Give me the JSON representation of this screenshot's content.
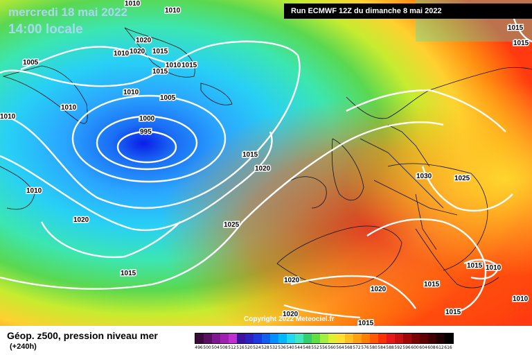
{
  "header": {
    "date_line": "mercredi 18 mai 2022",
    "time_line": "14:00 locale",
    "run_info": "Run ECMWF 12Z du dimanche 8 mai 2022"
  },
  "footer": {
    "field_title": "Géop. z500, pression niveau mer",
    "forecast_hour": "(+240h)",
    "copyright": "Copyright 2022 Meteociel.fr"
  },
  "legend": {
    "ticks": [
      "496",
      "500",
      "504",
      "508",
      "512",
      "516",
      "520",
      "524",
      "528",
      "532",
      "536",
      "540",
      "544",
      "548",
      "552",
      "556",
      "560",
      "564",
      "568",
      "572",
      "576",
      "580",
      "584",
      "588",
      "592",
      "596",
      "600",
      "604",
      "608",
      "612",
      "616"
    ],
    "colors": [
      "#3a0a3a",
      "#5a1060",
      "#801890",
      "#a020b0",
      "#c030d0",
      "#4010a0",
      "#3020c0",
      "#2038e0",
      "#1060f0",
      "#0090ff",
      "#00b8ff",
      "#20d8f0",
      "#40e8c0",
      "#30d070",
      "#60e040",
      "#a0f040",
      "#e0f030",
      "#ffe030",
      "#ffc020",
      "#ffa010",
      "#ff8000",
      "#ff5a00",
      "#ff3000",
      "#e81818",
      "#c81010",
      "#a00808",
      "#780404",
      "#600000",
      "#400000",
      "#200000",
      "#000000"
    ]
  },
  "isobars": [
    {
      "value": "1010",
      "label": "1010"
    },
    {
      "value": "1010",
      "label": "1010"
    },
    {
      "value": "1010",
      "label": "1010"
    },
    {
      "value": "1005",
      "label": "1005"
    },
    {
      "value": "1020",
      "label": "1020"
    },
    {
      "value": "1020",
      "label": "1020"
    },
    {
      "value": "1015",
      "label": "1015"
    },
    {
      "value": "1015",
      "label": "1015"
    },
    {
      "value": "1010",
      "label": "1010"
    },
    {
      "value": "1010",
      "label": "1010"
    },
    {
      "value": "1015",
      "label": "1015"
    },
    {
      "value": "1010",
      "label": "1010"
    },
    {
      "value": "1005",
      "label": "1005"
    },
    {
      "value": "1000",
      "label": "1000"
    },
    {
      "value": "995",
      "label": "995"
    },
    {
      "value": "1010",
      "label": "1010"
    },
    {
      "value": "1015",
      "label": "1015"
    },
    {
      "value": "1020",
      "label": "1020"
    },
    {
      "value": "1010",
      "label": "1010"
    },
    {
      "value": "1020",
      "label": "1020"
    },
    {
      "value": "1025",
      "label": "1025"
    },
    {
      "value": "1030",
      "label": "1030"
    },
    {
      "value": "1025",
      "label": "1025"
    },
    {
      "value": "1015",
      "label": "1015"
    },
    {
      "value": "1020",
      "label": "1020"
    },
    {
      "value": "1020",
      "label": "1020"
    },
    {
      "value": "1015",
      "label": "1015"
    },
    {
      "value": "1015",
      "label": "1015"
    },
    {
      "value": "1010",
      "label": "1010"
    },
    {
      "value": "1015",
      "label": "1015"
    },
    {
      "value": "1010",
      "label": "1010"
    },
    {
      "value": "1020",
      "label": "1020"
    },
    {
      "value": "1015",
      "label": "1015"
    },
    {
      "value": "1015",
      "label": "1015"
    },
    {
      "value": "1015",
      "label": "1015"
    }
  ]
}
